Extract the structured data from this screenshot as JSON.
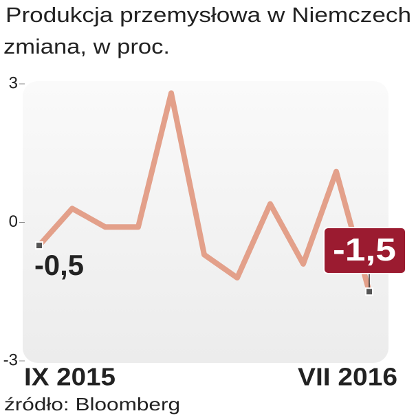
{
  "chart_data": {
    "type": "line",
    "title": "Produkcja przemysłowa w Niemczech",
    "subtitle": "zmiana, w proc.",
    "categories": [
      "IX 2015",
      null,
      null,
      null,
      null,
      null,
      null,
      null,
      null,
      null,
      "VII 2016"
    ],
    "series": [
      {
        "color": "#e3a08a",
        "values": [
          -0.5,
          0.3,
          -0.1,
          -0.1,
          2.8,
          -0.7,
          -1.2,
          0.4,
          -0.9,
          1.1,
          -1.5
        ],
        "value_labels": [
          "-0,5",
          null,
          null,
          null,
          null,
          null,
          null,
          null,
          null,
          null,
          "-1,5"
        ]
      }
    ],
    "ylim": [
      -3,
      3
    ],
    "yticks": [
      3,
      0,
      -3
    ],
    "source": "źródło: Bloomberg"
  }
}
